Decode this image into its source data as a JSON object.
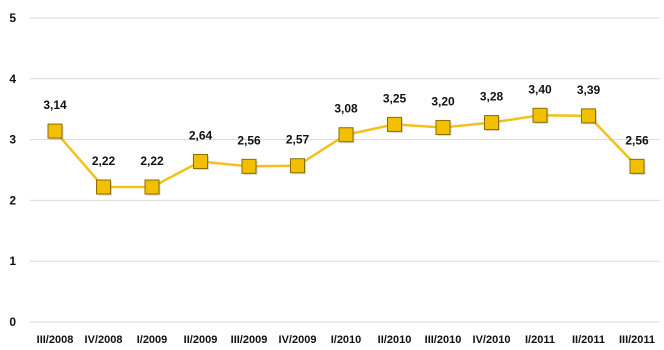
{
  "chart_data": {
    "type": "line",
    "categories": [
      "III/2008",
      "IV/2008",
      "I/2009",
      "II/2009",
      "III/2009",
      "IV/2009",
      "I/2010",
      "II/2010",
      "III/2010",
      "IV/2010",
      "I/2011",
      "II/2011",
      "III/2011"
    ],
    "series": [
      {
        "values": [
          3.14,
          2.22,
          2.22,
          2.64,
          2.56,
          2.57,
          3.08,
          3.25,
          3.2,
          3.28,
          3.4,
          3.39,
          2.56
        ],
        "data_labels": [
          "3,14",
          "2,22",
          "2,22",
          "2,64",
          "2,56",
          "2,57",
          "3,08",
          "3,25",
          "3,20",
          "3,28",
          "3,40",
          "3,39",
          "2,56"
        ]
      }
    ],
    "ylim": [
      0,
      5
    ],
    "yticks": [
      "0",
      "1",
      "2",
      "3",
      "4",
      "5"
    ],
    "grid": true,
    "legend": "none",
    "colors": {
      "line": "#f2c21b",
      "marker_fill": "#f2c000",
      "marker_stroke": "#8a6d00",
      "grid": "#d9d9d9"
    }
  }
}
